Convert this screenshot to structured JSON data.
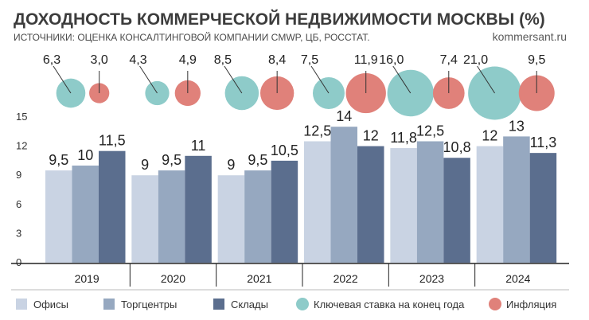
{
  "header": {
    "title": "ДОХОДНОСТЬ КОММЕРЧЕСКОЙ НЕДВИЖИМОСТИ МОСКВЫ (%)",
    "subtitle": "ИСТОЧНИКИ: ОЦЕНКА КОНСАЛТИНГОВОЙ КОМПАНИИ CMWP, ЦБ, РОССТАТ.",
    "source": "kommersant.ru"
  },
  "chart_data": {
    "type": "bar",
    "categories": [
      "2019",
      "2020",
      "2021",
      "2022",
      "2023",
      "2024"
    ],
    "series": [
      {
        "name": "Офисы",
        "color": "#c9d3e3",
        "values": [
          9.5,
          9,
          9,
          12.5,
          11.8,
          12
        ],
        "labels": [
          "9,5",
          "9",
          "9",
          "12,5",
          "11,8",
          "12"
        ]
      },
      {
        "name": "Торгцентры",
        "color": "#96a8c0",
        "values": [
          10,
          9.5,
          9.5,
          14,
          12.5,
          13
        ],
        "labels": [
          "10",
          "9,5",
          "9,5",
          "14",
          "12,5",
          "13"
        ]
      },
      {
        "name": "Склады",
        "color": "#5b6e8e",
        "values": [
          11.5,
          11,
          10.5,
          12,
          10.8,
          11.3
        ],
        "labels": [
          "11,5",
          "11",
          "10,5",
          "12",
          "10,8",
          "11,3"
        ]
      }
    ],
    "bubbles": [
      {
        "name": "Ключевая ставка на конец года",
        "color": "#8ecbc9",
        "values": [
          6.3,
          4.3,
          8.5,
          7.5,
          16.0,
          21.0
        ],
        "labels": [
          "6,3",
          "4,3",
          "8,5",
          "7,5",
          "16,0",
          "21,0"
        ]
      },
      {
        "name": "Инфляция",
        "color": "#e0817a",
        "values": [
          3.0,
          4.9,
          8.4,
          11.9,
          7.4,
          9.5
        ],
        "labels": [
          "3,0",
          "4,9",
          "8,4",
          "11,9",
          "7,4",
          "9,5"
        ]
      }
    ],
    "y_ticks": [
      "0",
      "3",
      "6",
      "9",
      "12",
      "15"
    ],
    "ylim": [
      0,
      15
    ],
    "grid": false,
    "legend_position": "bottom"
  }
}
